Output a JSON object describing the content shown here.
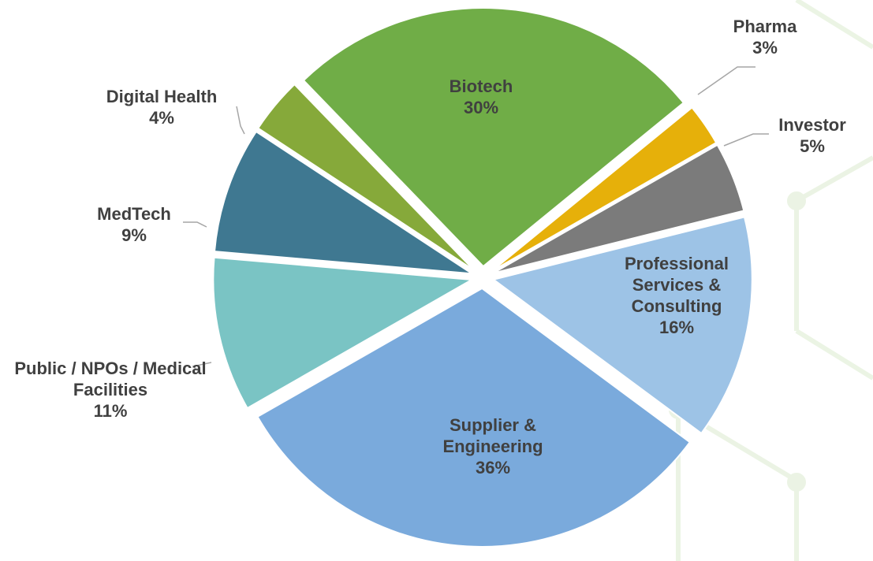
{
  "chart_data": {
    "type": "pie",
    "categories": [
      "Biotech",
      "Pharma",
      "Investor",
      "Professional Services & Consulting",
      "Supplier & Engineering",
      "Public / NPOs / Medical Facilities",
      "MedTech",
      "Digital Health"
    ],
    "values": [
      30,
      3,
      5,
      16,
      36,
      11,
      9,
      4
    ],
    "value_labels": [
      "30%",
      "3%",
      "5%",
      "16%",
      "36%",
      "11%",
      "9%",
      "4%"
    ],
    "colors": [
      "#70ad47",
      "#e6b00a",
      "#7b7b7b",
      "#9dc3e6",
      "#7aaadc",
      "#7ac4c4",
      "#3f7891",
      "#86a93a"
    ]
  }
}
